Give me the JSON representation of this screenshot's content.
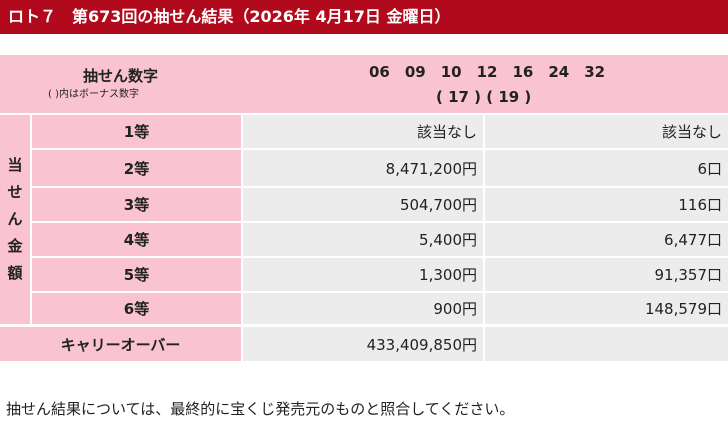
{
  "title": "ロト７　第673回の抽せん結果（2026年 4月17日 金曜日）",
  "winning_numbers": {
    "label": "抽せん数字",
    "sublabel": "( )内はボーナス数字",
    "main": [
      "06",
      "09",
      "10",
      "12",
      "16",
      "24",
      "32"
    ],
    "bonus_text": "( 17 ) ( 19 )"
  },
  "prize_section_label": [
    "当",
    "せ",
    "ん",
    "金",
    "額"
  ],
  "prizes": [
    {
      "rank": "1等",
      "amount": "該当なし",
      "winners": "該当なし"
    },
    {
      "rank": "2等",
      "amount": "8,471,200円",
      "winners": "6口"
    },
    {
      "rank": "3等",
      "amount": "504,700円",
      "winners": "116口"
    },
    {
      "rank": "4等",
      "amount": "5,400円",
      "winners": "6,477口"
    },
    {
      "rank": "5等",
      "amount": "1,300円",
      "winners": "91,357口"
    },
    {
      "rank": "6等",
      "amount": "900円",
      "winners": "148,579口"
    }
  ],
  "carryover": {
    "label": "キャリーオーバー",
    "amount": "433,409,850円",
    "winners": ""
  },
  "footer_note": "抽せん結果については、最終的に宝くじ発売元のものと照合してください。",
  "colors": {
    "title_bg": "#b00a1c",
    "label_bg": "#f9c3d2",
    "value_bg": "#ececec"
  }
}
